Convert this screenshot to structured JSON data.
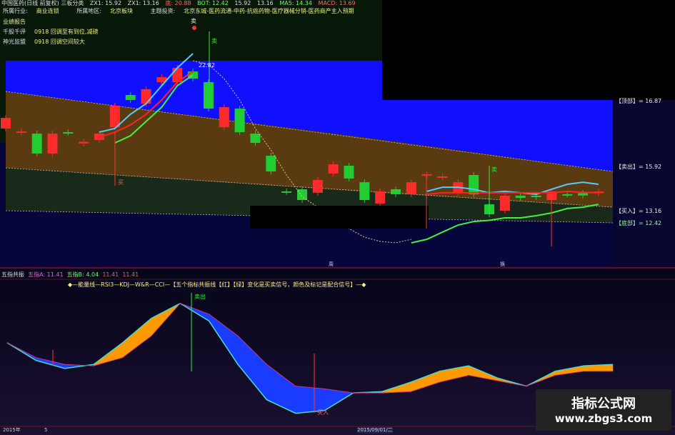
{
  "header": {
    "title": "中国医药(日线 前复权) 三板分类",
    "fields": [
      "ZX1: 15.92",
      "ZX1: 13.16",
      "底: 20.88",
      "BOT: 12.42",
      "15.92",
      "13.16",
      "MA5: 14.34",
      "MACD: 13.69"
    ]
  },
  "info": {
    "industry_label": "所属行业:",
    "industry": "商业连锁",
    "region_label": "所属地区:",
    "region": "北京板块",
    "theme_label": "主题投资:",
    "theme": "北京东城-医药流通-中药-抗癌药物-医疗器械分销-医药商产主入预期",
    "report_label": "业绩报告",
    "comment_label": "千股千评",
    "comment": "0918 回调至有到位,减磅",
    "alliance_label": "神光监盟",
    "alliance": "0918 回调空间较大"
  },
  "levels": {
    "top": "【顶部】= 16.87",
    "sell": "【卖出】= 15.92",
    "buy": "【买入】= 13.16",
    "bottom": "【底部】= 12.42"
  },
  "markers": {
    "sell": "卖",
    "buy": "买",
    "peak": "22.82",
    "sell2": "卖出",
    "buy2": "买入",
    "sell_marker_small": "卖"
  },
  "pane2": {
    "name": "五指共振",
    "a": "五指A: 11.41",
    "b": "五指B: 4.04",
    "v1": "11.41",
    "v2": "11.41",
    "desc": "◆—能量线—RSI3—KDJ—W&R—CCI—【五个指标共振线【红】【绿】变化是买卖信号，颜色及标记是配合信号】—◆"
  },
  "axis": {
    "start": "2015年",
    "m": "5",
    "date": "2015/09/01/二"
  },
  "pane_tags": {
    "a": "周",
    "b": "换"
  },
  "watermark": {
    "line1": "指标公式网",
    "line2": "www.zbgs3.com"
  },
  "colors": {
    "up": "#ff2a2a",
    "down": "#22cc33",
    "band_blue": "#1010ff",
    "band_brown": "#5a3a10",
    "osc_up": "#ff9900",
    "osc_down": "#1a3cff"
  },
  "chart_data": [
    {
      "type": "candlestick",
      "candles": [
        {
          "o": 18.33,
          "c": 18.99
        },
        {
          "o": 18.1,
          "c": 18.15
        },
        {
          "o": 18.01,
          "c": 16.77
        },
        {
          "o": 16.77,
          "c": 18.01
        },
        {
          "o": 18.1,
          "c": 18.06
        },
        {
          "o": 17.4,
          "c": 17.5
        },
        {
          "o": 17.61,
          "c": 18.01
        },
        {
          "o": 18.41,
          "c": 19.75
        },
        {
          "o": 20.42,
          "c": 20.11
        },
        {
          "o": 19.88,
          "c": 20.78
        },
        {
          "o": 21.22,
          "c": 21.53
        },
        {
          "o": 21.22,
          "c": 22.11
        },
        {
          "o": 21.89,
          "c": 21.44
        },
        {
          "o": 21.22,
          "c": 19.57
        },
        {
          "o": 18.41,
          "c": 19.66
        },
        {
          "o": 19.57,
          "c": 18.1
        },
        {
          "o": 18.01,
          "c": 17.43
        },
        {
          "o": 16.63,
          "c": 15.65
        },
        {
          "o": 14.41,
          "c": 14.38
        },
        {
          "o": 14.54,
          "c": 13.87
        },
        {
          "o": 14.32,
          "c": 15.12
        },
        {
          "o": 15.52,
          "c": 16.1
        },
        {
          "o": 16.01,
          "c": 15.21
        },
        {
          "o": 14.98,
          "c": 13.87
        },
        {
          "o": 13.65,
          "c": 14.41
        },
        {
          "o": 14.54,
          "c": 14.23
        },
        {
          "o": 14.23,
          "c": 14.98
        },
        {
          "o": 15.4,
          "c": 15.48
        },
        {
          "o": 15.3,
          "c": 15.34
        },
        {
          "o": 14.32,
          "c": 14.98
        },
        {
          "o": 15.43,
          "c": 14.23
        },
        {
          "o": 13.6,
          "c": 12.98
        },
        {
          "o": 13.2,
          "c": 14.14
        },
        {
          "o": 14.14,
          "c": 14.0
        },
        {
          "o": 14.14,
          "c": 14.05
        },
        {
          "o": 13.87,
          "c": 14.41
        },
        {
          "o": 14.23,
          "c": 14.2
        },
        {
          "o": 14.3,
          "c": 14.15
        },
        {
          "o": 14.3,
          "c": 14.4
        }
      ],
      "lines": [
        {
          "color": "#55ccff",
          "style": "solid",
          "values": [
            null,
            null,
            null,
            null,
            null,
            null,
            18.1,
            18.33,
            19.22,
            19.88,
            21.0,
            22.11,
            23.0,
            null,
            null,
            null,
            null,
            null,
            null,
            null,
            null,
            null,
            null,
            null,
            null,
            null,
            null,
            14.41,
            14.67,
            14.67,
            14.54,
            14.32,
            14.41,
            14.32,
            14.23,
            14.54,
            14.85,
            14.98,
            14.85
          ]
        },
        {
          "color": "#ff2222",
          "style": "solid",
          "values": [
            null,
            null,
            null,
            null,
            null,
            null,
            17.79,
            18.1,
            18.55,
            19.22,
            20.11,
            21.22,
            21.89,
            null,
            null,
            null,
            null,
            null,
            null,
            null,
            null,
            null,
            null,
            null,
            null,
            null,
            null,
            14.23,
            14.32,
            14.32,
            14.32,
            14.32,
            14.32,
            14.32,
            14.32,
            14.32,
            14.41,
            14.35,
            14.32
          ]
        },
        {
          "color": "#44ee44",
          "style": "solid",
          "values": [
            null,
            null,
            null,
            null,
            null,
            null,
            null,
            17.43,
            17.88,
            18.77,
            19.66,
            21.0,
            21.66,
            null,
            null,
            null,
            null,
            null,
            null,
            null,
            null,
            null,
            null,
            null,
            null,
            null,
            11.2,
            11.42,
            11.87,
            12.31,
            12.53,
            12.6,
            12.76,
            12.76,
            12.89,
            13.07,
            13.34,
            13.42,
            13.6
          ]
        },
        {
          "color": "#ddcc88",
          "style": "dotted",
          "values": [
            null,
            null,
            null,
            null,
            null,
            null,
            null,
            null,
            null,
            null,
            null,
            null,
            22.56,
            22.33,
            21.44,
            20.11,
            18.33,
            16.99,
            15.43,
            14.09,
            13.42,
            12.76,
            12.09,
            11.55,
            11.29,
            11.2,
            11.42,
            null,
            null,
            null,
            null,
            null,
            null,
            null,
            null,
            null,
            null,
            null,
            null
          ]
        }
      ]
    },
    {
      "type": "area",
      "series": [
        {
          "values": [
            58,
            45,
            39,
            42,
            58,
            76,
            87,
            74,
            42,
            16,
            6,
            8,
            21,
            22,
            29,
            37,
            41,
            32,
            26,
            37,
            41,
            42
          ]
        },
        {
          "values": [
            58,
            47,
            42,
            41,
            47,
            63,
            87,
            79,
            63,
            42,
            26,
            24,
            21,
            21,
            22,
            29,
            34,
            30,
            26,
            34,
            37,
            37
          ]
        }
      ]
    }
  ]
}
